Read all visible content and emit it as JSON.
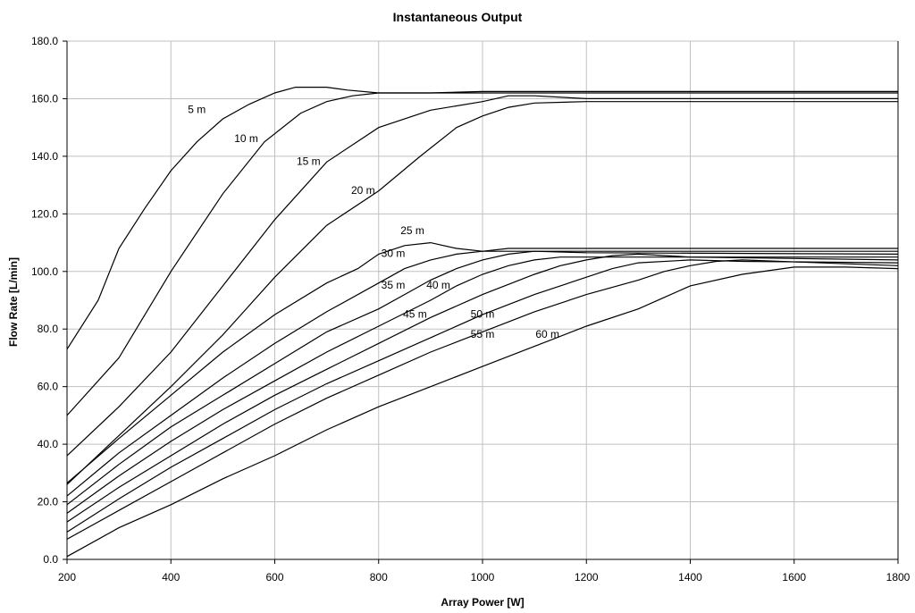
{
  "chart_data": {
    "type": "line",
    "title": "Instantaneous Output",
    "xlabel": "Array Power [W]",
    "ylabel": "Flow Rate [L/min]",
    "xlim": [
      200,
      1800
    ],
    "ylim": [
      0,
      180
    ],
    "x_ticks": [
      "200",
      "400",
      "600",
      "800",
      "1000",
      "1200",
      "1400",
      "1600",
      "1800"
    ],
    "y_ticks": [
      "0.0",
      "20.0",
      "40.0",
      "60.0",
      "80.0",
      "100.0",
      "120.0",
      "140.0",
      "160.0",
      "180.0"
    ],
    "grid": true,
    "legend": "none",
    "series": [
      {
        "name": "5 m",
        "points": [
          [
            200,
            73
          ],
          [
            260,
            90
          ],
          [
            300,
            108
          ],
          [
            350,
            122
          ],
          [
            400,
            135
          ],
          [
            450,
            145
          ],
          [
            500,
            153
          ],
          [
            550,
            158
          ],
          [
            600,
            162
          ],
          [
            640,
            164
          ],
          [
            700,
            164
          ],
          [
            740,
            163
          ],
          [
            800,
            162
          ],
          [
            1000,
            162
          ],
          [
            1800,
            162
          ]
        ]
      },
      {
        "name": "10 m",
        "points": [
          [
            200,
            50
          ],
          [
            300,
            70
          ],
          [
            400,
            100
          ],
          [
            500,
            127
          ],
          [
            580,
            145
          ],
          [
            650,
            155
          ],
          [
            700,
            159
          ],
          [
            750,
            161
          ],
          [
            800,
            162
          ],
          [
            900,
            162
          ],
          [
            1000,
            162.5
          ],
          [
            1800,
            162.5
          ]
        ]
      },
      {
        "name": "15 m",
        "points": [
          [
            200,
            36
          ],
          [
            300,
            53
          ],
          [
            400,
            72
          ],
          [
            500,
            95
          ],
          [
            600,
            118
          ],
          [
            700,
            138
          ],
          [
            800,
            150
          ],
          [
            900,
            156
          ],
          [
            1000,
            159
          ],
          [
            1050,
            161
          ],
          [
            1100,
            161
          ],
          [
            1200,
            160
          ],
          [
            1800,
            160
          ]
        ]
      },
      {
        "name": "20 m",
        "points": [
          [
            200,
            26
          ],
          [
            300,
            43
          ],
          [
            400,
            60
          ],
          [
            500,
            78
          ],
          [
            600,
            98
          ],
          [
            700,
            116
          ],
          [
            800,
            128
          ],
          [
            880,
            140
          ],
          [
            950,
            150
          ],
          [
            1000,
            154
          ],
          [
            1050,
            157
          ],
          [
            1100,
            158.5
          ],
          [
            1200,
            159
          ],
          [
            1800,
            159
          ]
        ]
      },
      {
        "name": "25 m",
        "points": [
          [
            200,
            26.5
          ],
          [
            300,
            42
          ],
          [
            400,
            57
          ],
          [
            500,
            72
          ],
          [
            600,
            85
          ],
          [
            700,
            96
          ],
          [
            760,
            101
          ],
          [
            800,
            106
          ],
          [
            850,
            109
          ],
          [
            900,
            110
          ],
          [
            950,
            108
          ],
          [
            1000,
            107
          ],
          [
            1800,
            107
          ]
        ]
      },
      {
        "name": "30 m",
        "points": [
          [
            200,
            22
          ],
          [
            300,
            37
          ],
          [
            400,
            50
          ],
          [
            500,
            63
          ],
          [
            600,
            75
          ],
          [
            700,
            86
          ],
          [
            800,
            96
          ],
          [
            850,
            101
          ],
          [
            900,
            104
          ],
          [
            950,
            106
          ],
          [
            1000,
            107
          ],
          [
            1050,
            108
          ],
          [
            1800,
            108
          ]
        ]
      },
      {
        "name": "35 m",
        "points": [
          [
            200,
            19
          ],
          [
            300,
            33
          ],
          [
            400,
            46
          ],
          [
            500,
            57
          ],
          [
            600,
            68
          ],
          [
            700,
            79
          ],
          [
            800,
            87
          ],
          [
            850,
            92
          ],
          [
            900,
            97
          ],
          [
            950,
            101
          ],
          [
            1000,
            104
          ],
          [
            1050,
            106
          ],
          [
            1100,
            107
          ],
          [
            1200,
            106.5
          ],
          [
            1800,
            106
          ]
        ]
      },
      {
        "name": "40 m",
        "points": [
          [
            200,
            16
          ],
          [
            300,
            29
          ],
          [
            400,
            41
          ],
          [
            500,
            52
          ],
          [
            600,
            62
          ],
          [
            700,
            72
          ],
          [
            800,
            81
          ],
          [
            900,
            90
          ],
          [
            950,
            95
          ],
          [
            1000,
            99
          ],
          [
            1050,
            102
          ],
          [
            1100,
            104
          ],
          [
            1150,
            105
          ],
          [
            1200,
            105
          ],
          [
            1800,
            105
          ]
        ]
      },
      {
        "name": "45 m",
        "points": [
          [
            200,
            13
          ],
          [
            300,
            25
          ],
          [
            400,
            36
          ],
          [
            500,
            47
          ],
          [
            600,
            57
          ],
          [
            700,
            66
          ],
          [
            800,
            75
          ],
          [
            900,
            84
          ],
          [
            1000,
            92
          ],
          [
            1100,
            99
          ],
          [
            1150,
            102
          ],
          [
            1200,
            104
          ],
          [
            1250,
            105.5
          ],
          [
            1300,
            106
          ],
          [
            1400,
            105
          ],
          [
            1800,
            104
          ]
        ]
      },
      {
        "name": "50 m",
        "points": [
          [
            200,
            9.5
          ],
          [
            300,
            21
          ],
          [
            400,
            32
          ],
          [
            500,
            42
          ],
          [
            600,
            52
          ],
          [
            700,
            61
          ],
          [
            800,
            69
          ],
          [
            900,
            77
          ],
          [
            1000,
            85
          ],
          [
            1100,
            92
          ],
          [
            1200,
            98
          ],
          [
            1250,
            101
          ],
          [
            1300,
            103
          ],
          [
            1400,
            104
          ],
          [
            1500,
            103.5
          ],
          [
            1800,
            103
          ]
        ]
      },
      {
        "name": "55 m",
        "points": [
          [
            200,
            7
          ],
          [
            300,
            17
          ],
          [
            400,
            27
          ],
          [
            500,
            37
          ],
          [
            600,
            47
          ],
          [
            700,
            56
          ],
          [
            800,
            64
          ],
          [
            900,
            72
          ],
          [
            1000,
            79
          ],
          [
            1100,
            86
          ],
          [
            1200,
            92
          ],
          [
            1300,
            97
          ],
          [
            1350,
            100
          ],
          [
            1400,
            102
          ],
          [
            1450,
            103.5
          ],
          [
            1500,
            104
          ],
          [
            1800,
            102
          ]
        ]
      },
      {
        "name": "60 m",
        "points": [
          [
            200,
            1
          ],
          [
            300,
            11
          ],
          [
            400,
            19
          ],
          [
            500,
            28
          ],
          [
            600,
            36
          ],
          [
            700,
            45
          ],
          [
            800,
            53
          ],
          [
            900,
            60
          ],
          [
            1000,
            67
          ],
          [
            1100,
            74
          ],
          [
            1200,
            81
          ],
          [
            1300,
            87
          ],
          [
            1350,
            91
          ],
          [
            1400,
            95
          ],
          [
            1500,
            99
          ],
          [
            1600,
            101.5
          ],
          [
            1700,
            101.5
          ],
          [
            1800,
            101
          ]
        ]
      }
    ],
    "annotations": [
      {
        "text": "5 m",
        "x": 450,
        "y": 155
      },
      {
        "text": "10 m",
        "x": 545,
        "y": 145
      },
      {
        "text": "15 m",
        "x": 665,
        "y": 137
      },
      {
        "text": "20 m",
        "x": 770,
        "y": 127
      },
      {
        "text": "25 m",
        "x": 865,
        "y": 113
      },
      {
        "text": "30 m",
        "x": 828,
        "y": 105
      },
      {
        "text": "35 m",
        "x": 828,
        "y": 94
      },
      {
        "text": "40 m",
        "x": 915,
        "y": 94
      },
      {
        "text": "45 m",
        "x": 870,
        "y": 84
      },
      {
        "text": "50 m",
        "x": 1000,
        "y": 84
      },
      {
        "text": "55 m",
        "x": 1000,
        "y": 77
      },
      {
        "text": "60 m",
        "x": 1125,
        "y": 77
      }
    ]
  }
}
